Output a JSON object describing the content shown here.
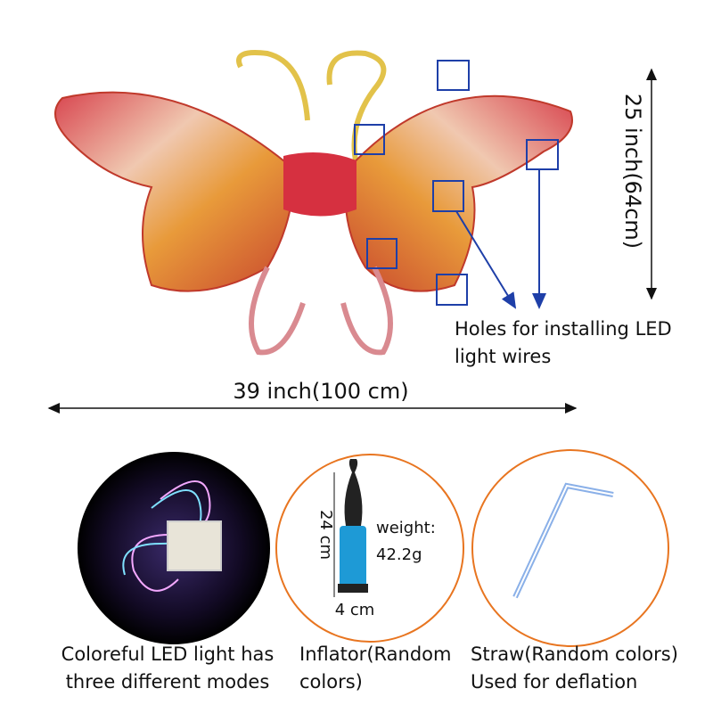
{
  "dimensions": {
    "height_label": "25 inch(64cm)",
    "width_label": "39 inch(100 cm)"
  },
  "holes_note": [
    "Holes for installing LED",
    "light wires"
  ],
  "inflator": {
    "height_label": "24 cm",
    "width_label": "4 cm",
    "weight_title": "weight:",
    "weight_value": "42.2g"
  },
  "items": [
    {
      "lines": [
        "Coloreful LED light has",
        "three different modes"
      ]
    },
    {
      "lines": [
        "Inflator(Random",
        "colors)"
      ]
    },
    {
      "lines": [
        "Straw(Random colors)",
        "Used for deflation"
      ]
    }
  ]
}
